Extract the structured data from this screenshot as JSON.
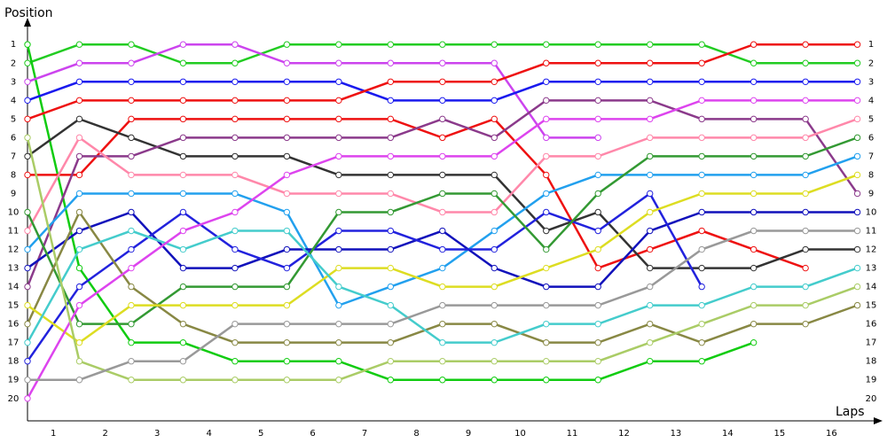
{
  "chart_data": {
    "type": "line",
    "y_label": "Position",
    "x_label": "Laps",
    "x": [
      0,
      1,
      2,
      3,
      4,
      5,
      6,
      7,
      8,
      9,
      10,
      11,
      12,
      13,
      14,
      15,
      16
    ],
    "xlim": [
      0,
      16.4
    ],
    "xticks": [
      {
        "value": 0.5,
        "label": "1"
      },
      {
        "value": 1.5,
        "label": "2"
      },
      {
        "value": 2.5,
        "label": "3"
      },
      {
        "value": 3.5,
        "label": "4"
      },
      {
        "value": 4.5,
        "label": "5"
      },
      {
        "value": 5.5,
        "label": "6"
      },
      {
        "value": 6.5,
        "label": "7"
      },
      {
        "value": 7.5,
        "label": "8"
      },
      {
        "value": 8.5,
        "label": "9"
      },
      {
        "value": 9.5,
        "label": "10"
      },
      {
        "value": 10.5,
        "label": "11"
      },
      {
        "value": 11.5,
        "label": "12"
      },
      {
        "value": 12.5,
        "label": "13"
      },
      {
        "value": 13.5,
        "label": "14"
      },
      {
        "value": 14.5,
        "label": "15"
      },
      {
        "value": 15.5,
        "label": "16"
      }
    ],
    "ylim": [
      21.2,
      -0.2
    ],
    "yticks": [
      1,
      2,
      3,
      4,
      5,
      6,
      7,
      8,
      9,
      10,
      11,
      12,
      13,
      14,
      15,
      16,
      17,
      18,
      19,
      20
    ],
    "series": [
      {
        "color": "#22cc22",
        "values": [
          2,
          1,
          1,
          2,
          2,
          1,
          1,
          1,
          1,
          1,
          1,
          1,
          1,
          1,
          2,
          2,
          2
        ]
      },
      {
        "color": "#11cc11",
        "values": [
          1,
          13,
          17,
          17,
          18,
          18,
          18,
          19,
          19,
          19,
          19,
          19,
          18,
          18,
          17,
          null,
          null
        ]
      },
      {
        "color": "#cc44ee",
        "values": [
          3,
          2,
          2,
          1,
          1,
          2,
          2,
          2,
          2,
          2,
          6,
          6,
          null,
          null,
          null,
          null,
          null
        ]
      },
      {
        "color": "#1a1aee",
        "values": [
          4,
          3,
          3,
          3,
          3,
          3,
          3,
          4,
          4,
          4,
          3,
          3,
          3,
          3,
          3,
          3,
          3
        ]
      },
      {
        "color": "#ee1111",
        "values": [
          5,
          4,
          4,
          4,
          4,
          4,
          4,
          3,
          3,
          3,
          2,
          2,
          2,
          2,
          1,
          1,
          1
        ]
      },
      {
        "color": "#ee1111",
        "values": [
          8,
          8,
          5,
          5,
          5,
          5,
          5,
          5,
          6,
          5,
          8,
          13,
          12,
          11,
          12,
          13,
          null
        ]
      },
      {
        "color": "#333333",
        "values": [
          7,
          5,
          6,
          7,
          7,
          7,
          8,
          8,
          8,
          8,
          11,
          10,
          13,
          13,
          13,
          12,
          12
        ]
      },
      {
        "color": "#8b3a8b",
        "values": [
          14,
          7,
          7,
          6,
          6,
          6,
          6,
          6,
          5,
          6,
          4,
          4,
          4,
          5,
          5,
          5,
          9
        ]
      },
      {
        "color": "#ff88aa",
        "values": [
          11,
          6,
          8,
          8,
          8,
          9,
          9,
          9,
          10,
          10,
          7,
          7,
          6,
          6,
          6,
          6,
          5
        ]
      },
      {
        "color": "#22a0ee",
        "values": [
          12,
          9,
          9,
          9,
          9,
          10,
          15,
          14,
          13,
          11,
          9,
          8,
          8,
          8,
          8,
          8,
          7
        ]
      },
      {
        "color": "#1111bb",
        "values": [
          13,
          11,
          10,
          13,
          13,
          12,
          12,
          12,
          11,
          13,
          14,
          14,
          11,
          10,
          10,
          10,
          10
        ]
      },
      {
        "color": "#2222dd",
        "values": [
          18,
          14,
          12,
          10,
          12,
          13,
          11,
          11,
          12,
          12,
          10,
          11,
          9,
          14,
          null,
          null,
          null
        ]
      },
      {
        "color": "#339933",
        "values": [
          10,
          16,
          16,
          14,
          14,
          14,
          10,
          10,
          9,
          9,
          12,
          9,
          7,
          7,
          7,
          7,
          6
        ]
      },
      {
        "color": "#888844",
        "values": [
          16,
          10,
          14,
          16,
          17,
          17,
          17,
          17,
          16,
          16,
          17,
          17,
          16,
          17,
          16,
          16,
          15
        ]
      },
      {
        "color": "#dddd22",
        "values": [
          15,
          17,
          15,
          15,
          15,
          15,
          13,
          13,
          14,
          14,
          13,
          12,
          10,
          9,
          9,
          9,
          8
        ]
      },
      {
        "color": "#44cccc",
        "values": [
          17,
          12,
          11,
          12,
          11,
          11,
          14,
          15,
          17,
          17,
          16,
          16,
          15,
          15,
          14,
          14,
          13
        ]
      },
      {
        "color": "#dd44ee",
        "values": [
          20,
          15,
          13,
          11,
          10,
          8,
          7,
          7,
          7,
          7,
          5,
          5,
          5,
          4,
          4,
          4,
          4
        ]
      },
      {
        "color": "#aacc66",
        "values": [
          6,
          18,
          19,
          19,
          19,
          19,
          19,
          18,
          18,
          18,
          18,
          18,
          17,
          16,
          15,
          15,
          14
        ]
      },
      {
        "color": "#999999",
        "values": [
          19,
          19,
          18,
          18,
          16,
          16,
          16,
          16,
          15,
          15,
          15,
          15,
          14,
          12,
          11,
          11,
          11
        ]
      }
    ]
  }
}
